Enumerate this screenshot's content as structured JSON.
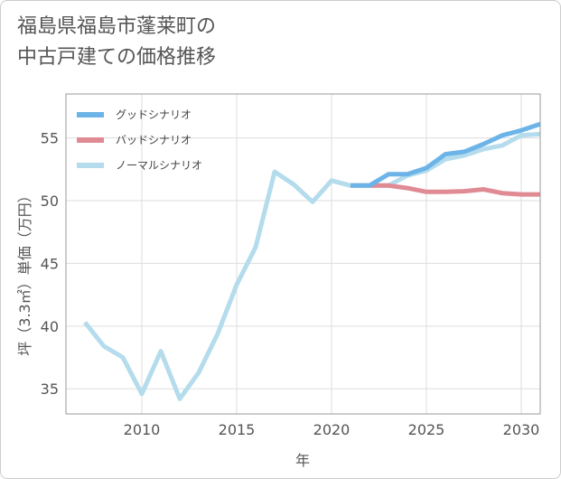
{
  "title": {
    "line1": "福島県福島市蓬莱町の",
    "line2": "中古戸建ての価格推移"
  },
  "chart_data": {
    "type": "line",
    "xlabel": "年",
    "ylabel": "坪（3.3㎡）単価（万円）",
    "xlim": [
      2006,
      2031
    ],
    "ylim": [
      33,
      58.5
    ],
    "xticks": [
      2010,
      2015,
      2020,
      2025,
      2030
    ],
    "yticks": [
      35,
      40,
      45,
      50,
      55
    ],
    "grid": true,
    "legend_position": "top-left",
    "series": [
      {
        "name": "グッドシナリオ",
        "color": "#6cb4e8",
        "x": [
          2021,
          2022,
          2023,
          2024,
          2025,
          2026,
          2027,
          2028,
          2029,
          2030,
          2031
        ],
        "values": [
          51.2,
          51.2,
          52.1,
          52.1,
          52.6,
          53.7,
          53.9,
          54.5,
          55.2,
          55.6,
          56.1
        ]
      },
      {
        "name": "バッドシナリオ",
        "color": "#e08a94",
        "x": [
          2021,
          2022,
          2023,
          2024,
          2025,
          2026,
          2027,
          2028,
          2029,
          2030,
          2031
        ],
        "values": [
          51.2,
          51.2,
          51.2,
          51.0,
          50.7,
          50.7,
          50.75,
          50.9,
          50.6,
          50.5,
          50.5
        ]
      },
      {
        "name": "ノーマルシナリオ",
        "color": "#b4dcec",
        "x": [
          2007,
          2008,
          2009,
          2010,
          2011,
          2012,
          2013,
          2014,
          2015,
          2016,
          2017,
          2018,
          2019,
          2020,
          2021,
          2022,
          2023,
          2024,
          2025,
          2026,
          2027,
          2028,
          2029,
          2030,
          2031
        ],
        "values": [
          40.3,
          38.4,
          37.5,
          34.6,
          38.0,
          34.2,
          36.3,
          39.4,
          43.3,
          46.3,
          52.3,
          51.3,
          49.9,
          51.6,
          51.2,
          51.2,
          51.2,
          52.0,
          52.4,
          53.3,
          53.6,
          54.1,
          54.4,
          55.2,
          55.3
        ]
      }
    ]
  }
}
